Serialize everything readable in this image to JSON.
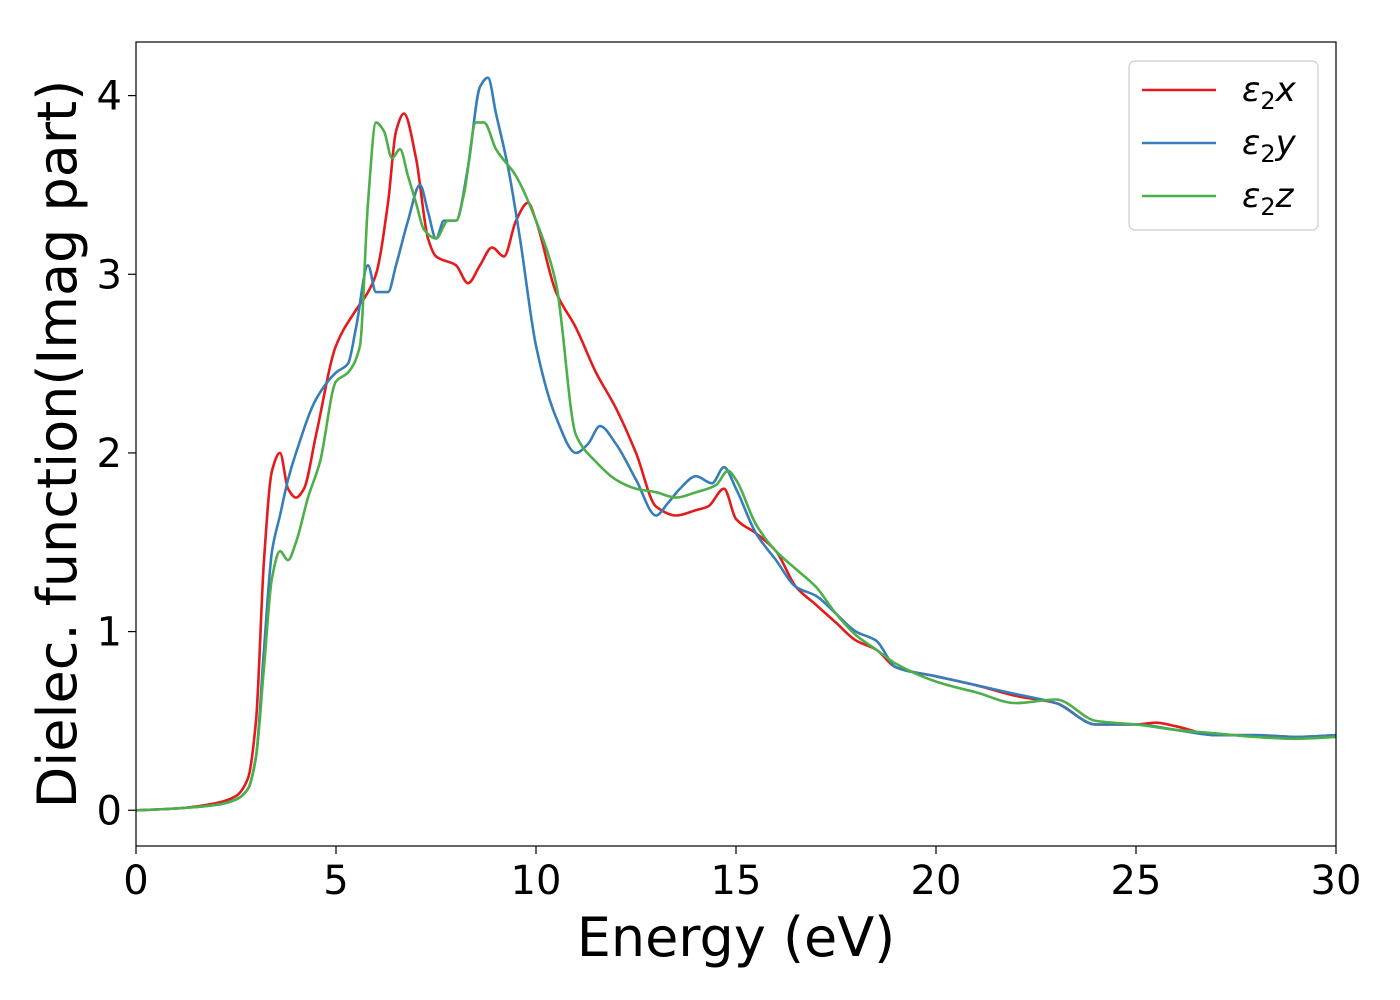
{
  "chart_data": {
    "type": "line",
    "xlabel": "Energy (eV)",
    "ylabel": "Dielec. function(Imag part)",
    "xlim": [
      0,
      30
    ],
    "ylim": [
      -0.2,
      4.3
    ],
    "xticks": [
      0,
      5,
      10,
      15,
      20,
      25,
      30
    ],
    "yticks": [
      0,
      1,
      2,
      3,
      4
    ],
    "grid": false,
    "legend_position": "top-right",
    "series": [
      {
        "name": "ε2x",
        "legend": {
          "main": "ε",
          "sub": "2",
          "suffix": "x"
        },
        "color": "#e41a1c",
        "x": [
          0,
          1,
          2,
          2.5,
          2.8,
          3.0,
          3.2,
          3.4,
          3.6,
          3.8,
          4.0,
          4.2,
          4.5,
          5.0,
          5.5,
          5.8,
          6.0,
          6.3,
          6.5,
          6.7,
          7.0,
          7.3,
          7.5,
          8.0,
          8.3,
          8.6,
          8.9,
          9.2,
          9.5,
          9.8,
          10.0,
          10.5,
          11.0,
          11.5,
          12.0,
          12.5,
          13.0,
          13.5,
          14.0,
          14.3,
          14.7,
          15.0,
          15.5,
          16.0,
          16.5,
          17.0,
          17.5,
          18.0,
          18.5,
          19.0,
          20.0,
          21.0,
          22.0,
          23.0,
          24.0,
          25.0,
          25.5,
          26.0,
          27.0,
          28.0,
          29.0,
          30.0
        ],
        "y": [
          0,
          0.01,
          0.04,
          0.08,
          0.18,
          0.5,
          1.4,
          1.9,
          2.0,
          1.8,
          1.75,
          1.8,
          2.1,
          2.6,
          2.8,
          2.9,
          3.0,
          3.4,
          3.8,
          3.9,
          3.65,
          3.2,
          3.1,
          3.05,
          2.95,
          3.05,
          3.15,
          3.1,
          3.3,
          3.4,
          3.3,
          2.9,
          2.7,
          2.45,
          2.25,
          2.0,
          1.7,
          1.65,
          1.68,
          1.7,
          1.8,
          1.63,
          1.55,
          1.45,
          1.25,
          1.15,
          1.05,
          0.95,
          0.9,
          0.8,
          0.75,
          0.7,
          0.64,
          0.6,
          0.48,
          0.48,
          0.49,
          0.47,
          0.42,
          0.42,
          0.41,
          0.42
        ]
      },
      {
        "name": "ε2y",
        "legend": {
          "main": "ε",
          "sub": "2",
          "suffix": "y"
        },
        "color": "#377eb8",
        "x": [
          0,
          1,
          2,
          2.5,
          2.8,
          3.0,
          3.2,
          3.4,
          3.6,
          3.8,
          4.0,
          4.5,
          5.0,
          5.3,
          5.5,
          5.8,
          6.0,
          6.3,
          6.5,
          6.8,
          7.1,
          7.3,
          7.5,
          7.7,
          8.0,
          8.3,
          8.6,
          8.8,
          9.0,
          9.3,
          9.6,
          10.0,
          10.5,
          11.0,
          11.3,
          11.6,
          12.0,
          12.5,
          13.0,
          13.3,
          13.6,
          14.0,
          14.4,
          14.7,
          15.0,
          15.5,
          16.0,
          16.5,
          17.0,
          17.5,
          18.0,
          18.5,
          19.0,
          20.0,
          21.0,
          22.0,
          23.0,
          24.0,
          25.0,
          26.0,
          27.0,
          28.0,
          29.0,
          30.0
        ],
        "y": [
          0,
          0.01,
          0.03,
          0.06,
          0.12,
          0.3,
          0.9,
          1.45,
          1.65,
          1.85,
          2.0,
          2.3,
          2.45,
          2.5,
          2.7,
          3.05,
          2.9,
          2.9,
          3.05,
          3.3,
          3.5,
          3.35,
          3.2,
          3.3,
          3.3,
          3.6,
          4.05,
          4.1,
          3.9,
          3.6,
          3.2,
          2.6,
          2.2,
          2.0,
          2.05,
          2.15,
          2.05,
          1.85,
          1.65,
          1.72,
          1.8,
          1.87,
          1.83,
          1.92,
          1.8,
          1.55,
          1.4,
          1.25,
          1.2,
          1.1,
          1.0,
          0.95,
          0.8,
          0.75,
          0.7,
          0.65,
          0.6,
          0.48,
          0.48,
          0.45,
          0.42,
          0.42,
          0.41,
          0.42
        ]
      },
      {
        "name": "ε2z",
        "legend": {
          "main": "ε",
          "sub": "2",
          "suffix": "z"
        },
        "color": "#4daf4a",
        "x": [
          0,
          1,
          2,
          2.5,
          2.8,
          3.0,
          3.2,
          3.4,
          3.6,
          3.8,
          4.0,
          4.3,
          4.6,
          5.0,
          5.3,
          5.6,
          5.8,
          6.0,
          6.2,
          6.4,
          6.6,
          6.8,
          7.0,
          7.2,
          7.5,
          7.8,
          8.0,
          8.2,
          8.5,
          8.7,
          9.0,
          9.5,
          10.0,
          10.5,
          11.0,
          11.5,
          12.0,
          12.5,
          13.0,
          13.5,
          14.0,
          14.5,
          14.8,
          15.0,
          15.5,
          16.0,
          16.5,
          17.0,
          17.5,
          18.0,
          18.5,
          19.0,
          20.0,
          21.0,
          22.0,
          23.0,
          24.0,
          25.0,
          26.0,
          27.0,
          28.0,
          29.0,
          30.0
        ],
        "y": [
          0,
          0.01,
          0.03,
          0.06,
          0.12,
          0.3,
          0.8,
          1.3,
          1.45,
          1.4,
          1.5,
          1.75,
          1.95,
          2.4,
          2.45,
          2.6,
          3.4,
          3.85,
          3.8,
          3.65,
          3.7,
          3.55,
          3.4,
          3.25,
          3.2,
          3.3,
          3.3,
          3.45,
          3.85,
          3.85,
          3.7,
          3.55,
          3.3,
          2.95,
          2.1,
          1.95,
          1.85,
          1.8,
          1.78,
          1.75,
          1.78,
          1.82,
          1.9,
          1.85,
          1.6,
          1.45,
          1.35,
          1.25,
          1.1,
          0.98,
          0.9,
          0.82,
          0.72,
          0.66,
          0.6,
          0.62,
          0.5,
          0.48,
          0.45,
          0.43,
          0.41,
          0.4,
          0.41
        ]
      }
    ]
  }
}
